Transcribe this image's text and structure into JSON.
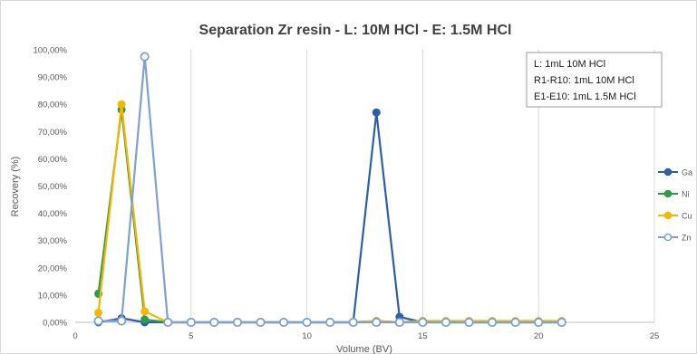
{
  "chart_data": {
    "type": "line",
    "title": "Separation Zr resin - L: 10M HCl - E: 1.5M HCl",
    "xlabel": "Volume (BV)",
    "ylabel": "Recovery (%)",
    "xlim": [
      0,
      25
    ],
    "ylim": [
      0,
      1
    ],
    "x_ticks": [
      "0",
      "5",
      "10",
      "15",
      "20",
      "25"
    ],
    "y_ticks": [
      "0,00%",
      "10,00%",
      "20,00%",
      "30,00%",
      "40,00%",
      "50,00%",
      "60,00%",
      "70,00%",
      "80,00%",
      "90,00%",
      "100,00%"
    ],
    "grid": "vertical",
    "legend_position": "right",
    "annotation": [
      "L: 1mL 10M HCl",
      "R1-R10: 1mL 10M HCl",
      "E1-E10: 1mL 1.5M HCl"
    ],
    "x": [
      1,
      2,
      3,
      4,
      5,
      6,
      7,
      8,
      9,
      10,
      11,
      12,
      13,
      14,
      15,
      16,
      17,
      18,
      19,
      20,
      21
    ],
    "series": [
      {
        "name": "Ga",
        "color": "#2e5ea8",
        "values": [
          0.0,
          0.015,
          0.0,
          0.0,
          0.0,
          0.0,
          0.0,
          0.0,
          0.0,
          0.0,
          0.0,
          0.0,
          0.77,
          0.02,
          0.0,
          0.0,
          0.0,
          0.0,
          0.0,
          0.0,
          0.0
        ]
      },
      {
        "name": "Ni",
        "color": "#2e9a4a",
        "values": [
          0.105,
          0.78,
          0.01,
          0.0,
          0.0,
          0.0,
          0.0,
          0.0,
          0.0,
          0.0,
          0.0,
          0.0,
          0.005,
          0.0,
          0.005,
          0.0,
          0.0,
          0.0,
          0.0,
          0.0,
          0.0
        ]
      },
      {
        "name": "Cu",
        "color": "#f5b800",
        "values": [
          0.035,
          0.8,
          0.04,
          0.0,
          0.0,
          0.0,
          0.0,
          0.0,
          0.0,
          0.0,
          0.0,
          0.0,
          0.005,
          0.0,
          0.005,
          0.005,
          0.005,
          0.005,
          0.005,
          0.005,
          0.005
        ]
      },
      {
        "name": "Zn",
        "color": "#7fa1cf",
        "values": [
          0.005,
          0.005,
          0.975,
          0.0,
          0.0,
          0.0,
          0.0,
          0.0,
          0.0,
          0.0,
          0.0,
          0.0,
          0.0,
          0.0,
          0.0,
          0.0,
          0.0,
          0.0,
          0.0,
          0.0,
          0.0
        ]
      }
    ]
  }
}
